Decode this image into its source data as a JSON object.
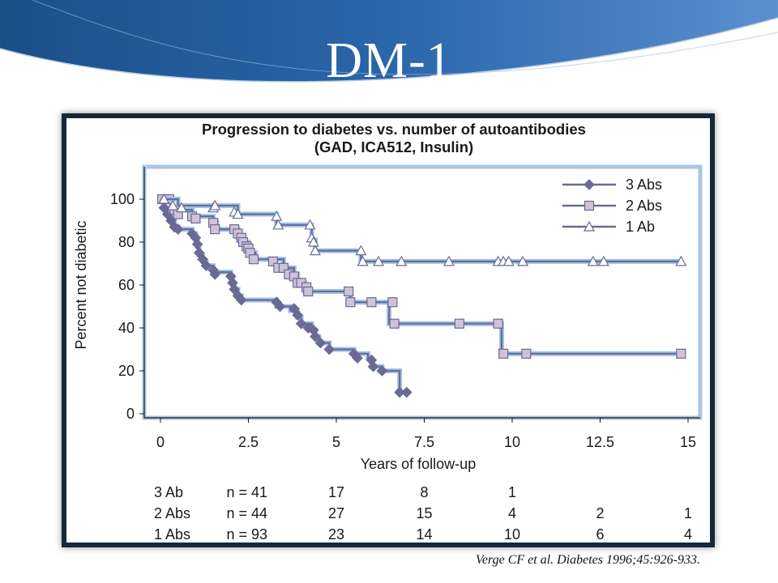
{
  "slide": {
    "title": "DM-1",
    "citation": "Verge CF et al. Diabetes 1996;45:926-933."
  },
  "colors": {
    "banner_dark": "#1b4f8a",
    "banner_light": "#5b8fd0",
    "plot_border": "#a9c6e3",
    "series_color": "#6b6a95",
    "marker_fill": "#cfc2d9"
  },
  "chart_data": {
    "type": "line",
    "subtype": "step (Kaplan-Meier)",
    "title": "Progression to diabetes vs. number of autoantibodies",
    "subtitle": "(GAD, ICA512, Insulin)",
    "xlabel": "Years of follow-up",
    "ylabel": "Percent not diabetic",
    "xlim": [
      0,
      15
    ],
    "ylim": [
      0,
      100
    ],
    "xticks": [
      0,
      2.5,
      5,
      7.5,
      10,
      12.5,
      15
    ],
    "xtick_labels": [
      "0",
      "2.5",
      "5",
      "7.5",
      "10",
      "12.5",
      "15"
    ],
    "yticks": [
      0,
      20,
      40,
      60,
      80,
      100
    ],
    "ytick_labels": [
      "0",
      "20",
      "40",
      "60",
      "80",
      "100"
    ],
    "legend_position": "top-right",
    "grid": false,
    "series": [
      {
        "name": "3 Abs",
        "marker": "diamond",
        "steps": [
          [
            0,
            100
          ],
          [
            0.1,
            96
          ],
          [
            0.2,
            93
          ],
          [
            0.3,
            90
          ],
          [
            0.4,
            87
          ],
          [
            0.5,
            86
          ],
          [
            0.9,
            84
          ],
          [
            1.0,
            81
          ],
          [
            1.05,
            78
          ],
          [
            1.1,
            74
          ],
          [
            1.2,
            71
          ],
          [
            1.3,
            69
          ],
          [
            1.5,
            66
          ],
          [
            2.0,
            64
          ],
          [
            2.05,
            61
          ],
          [
            2.1,
            58
          ],
          [
            2.2,
            55
          ],
          [
            2.3,
            53
          ],
          [
            3.3,
            50
          ],
          [
            3.7,
            48
          ],
          [
            3.9,
            45
          ],
          [
            4.0,
            42
          ],
          [
            4.3,
            39
          ],
          [
            4.4,
            36
          ],
          [
            4.5,
            33
          ],
          [
            4.8,
            30
          ],
          [
            5.5,
            28
          ],
          [
            5.9,
            26
          ],
          [
            6.0,
            22
          ],
          [
            6.3,
            20
          ],
          [
            6.8,
            10
          ]
        ],
        "end_x": 6.8,
        "markers": [
          [
            0.1,
            96
          ],
          [
            0.2,
            93
          ],
          [
            0.3,
            90
          ],
          [
            0.4,
            87
          ],
          [
            0.5,
            86
          ],
          [
            0.9,
            84
          ],
          [
            1.0,
            82
          ],
          [
            1.05,
            79
          ],
          [
            1.1,
            75
          ],
          [
            1.2,
            72
          ],
          [
            1.3,
            69
          ],
          [
            1.5,
            67
          ],
          [
            1.55,
            65
          ],
          [
            2.0,
            64
          ],
          [
            2.05,
            61
          ],
          [
            2.1,
            58
          ],
          [
            2.2,
            55
          ],
          [
            2.3,
            53
          ],
          [
            3.3,
            52
          ],
          [
            3.4,
            50
          ],
          [
            3.8,
            49
          ],
          [
            3.9,
            46
          ],
          [
            4.0,
            42
          ],
          [
            4.2,
            40
          ],
          [
            4.35,
            39
          ],
          [
            4.4,
            36
          ],
          [
            4.55,
            33
          ],
          [
            4.8,
            30
          ],
          [
            5.5,
            28
          ],
          [
            5.6,
            26
          ],
          [
            6.0,
            25
          ],
          [
            6.05,
            22
          ],
          [
            6.3,
            20
          ],
          [
            6.8,
            10
          ],
          [
            7.0,
            10
          ]
        ]
      },
      {
        "name": "2 Abs",
        "marker": "square",
        "steps": [
          [
            0,
            100
          ],
          [
            0.3,
            95
          ],
          [
            0.9,
            92
          ],
          [
            1.5,
            89
          ],
          [
            1.6,
            86
          ],
          [
            2.2,
            82
          ],
          [
            2.35,
            80
          ],
          [
            2.5,
            75
          ],
          [
            2.7,
            72
          ],
          [
            3.5,
            68
          ],
          [
            3.8,
            65
          ],
          [
            3.9,
            61
          ],
          [
            4.1,
            57
          ],
          [
            5.4,
            52
          ],
          [
            6.5,
            42
          ],
          [
            9.7,
            28
          ]
        ],
        "end_x": 14.8,
        "markers": [
          [
            0.05,
            100
          ],
          [
            0.25,
            100
          ],
          [
            0.4,
            95
          ],
          [
            0.5,
            93
          ],
          [
            0.9,
            92
          ],
          [
            1.0,
            91
          ],
          [
            1.5,
            89
          ],
          [
            1.55,
            86
          ],
          [
            2.1,
            86
          ],
          [
            2.2,
            84
          ],
          [
            2.3,
            82
          ],
          [
            2.35,
            80
          ],
          [
            2.45,
            78
          ],
          [
            2.5,
            77
          ],
          [
            2.55,
            75
          ],
          [
            2.65,
            72
          ],
          [
            3.2,
            71
          ],
          [
            3.35,
            68
          ],
          [
            3.5,
            68
          ],
          [
            3.65,
            65
          ],
          [
            3.8,
            64
          ],
          [
            3.9,
            61
          ],
          [
            4.0,
            61
          ],
          [
            4.15,
            59
          ],
          [
            4.2,
            57
          ],
          [
            5.35,
            57
          ],
          [
            5.4,
            52
          ],
          [
            6.0,
            52
          ],
          [
            6.6,
            52
          ],
          [
            6.65,
            42
          ],
          [
            8.5,
            42
          ],
          [
            9.6,
            42
          ],
          [
            9.75,
            28
          ],
          [
            10.4,
            28
          ],
          [
            14.8,
            28
          ]
        ]
      },
      {
        "name": "1 Ab",
        "marker": "triangle",
        "steps": [
          [
            0,
            100
          ],
          [
            0.5,
            97
          ],
          [
            2.2,
            93
          ],
          [
            3.3,
            88
          ],
          [
            4.3,
            81
          ],
          [
            4.4,
            76
          ],
          [
            5.7,
            71
          ]
        ],
        "end_x": 14.8,
        "markers": [
          [
            0.1,
            100
          ],
          [
            0.35,
            97
          ],
          [
            0.6,
            96
          ],
          [
            1.5,
            96
          ],
          [
            1.55,
            97
          ],
          [
            2.1,
            94
          ],
          [
            2.2,
            93
          ],
          [
            3.3,
            92
          ],
          [
            3.35,
            88
          ],
          [
            4.25,
            88
          ],
          [
            4.3,
            82
          ],
          [
            4.35,
            80
          ],
          [
            4.4,
            76
          ],
          [
            5.7,
            76
          ],
          [
            5.75,
            71
          ],
          [
            6.2,
            71
          ],
          [
            6.85,
            71
          ],
          [
            8.2,
            71
          ],
          [
            9.6,
            71
          ],
          [
            9.75,
            71
          ],
          [
            9.9,
            71
          ],
          [
            10.3,
            71
          ],
          [
            12.3,
            71
          ],
          [
            12.6,
            71
          ],
          [
            14.8,
            71
          ]
        ]
      }
    ],
    "risk_table": {
      "columns_at": [
        0,
        5,
        7.5,
        10,
        12.5,
        15
      ],
      "rows": [
        {
          "label": "3 Ab",
          "n": "n = 41",
          "values": [
            "17",
            "8",
            "1",
            "",
            ""
          ]
        },
        {
          "label": "2 Abs",
          "n": "n = 44",
          "values": [
            "27",
            "15",
            "4",
            "2",
            "1"
          ]
        },
        {
          "label": "1 Abs",
          "n": "n = 93",
          "values": [
            "23",
            "14",
            "10",
            "6",
            "4"
          ]
        }
      ]
    }
  }
}
